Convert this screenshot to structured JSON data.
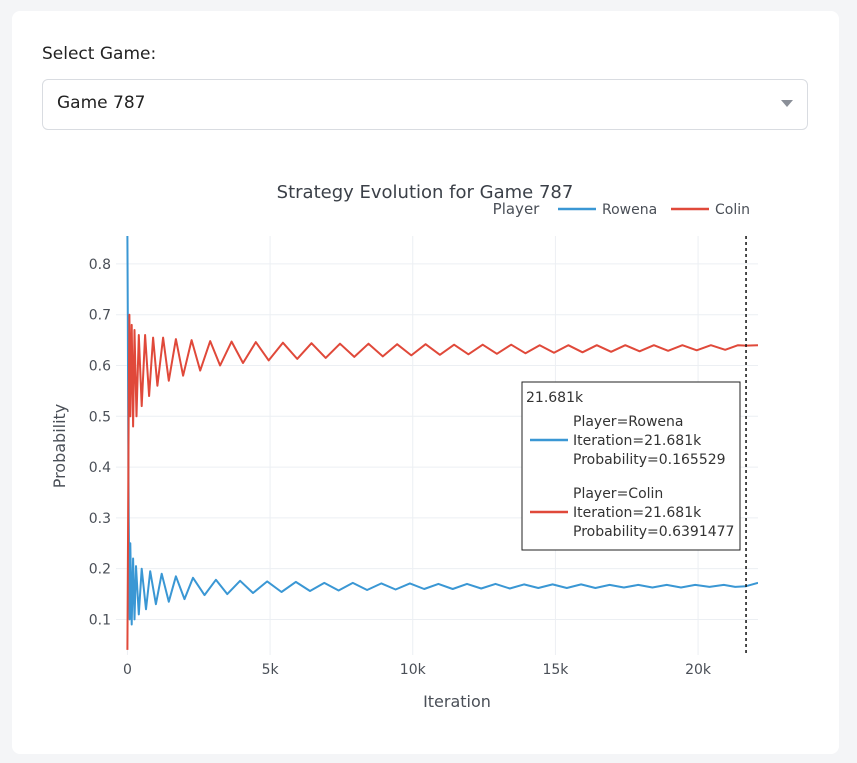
{
  "select": {
    "label": "Select Game:",
    "value": "Game 787"
  },
  "colors": {
    "rowena": "#3a97d4",
    "colin": "#e0493a",
    "grid": "#eceff3",
    "axis_text": "#4a4f57"
  },
  "chart_data": {
    "type": "line",
    "title": "Strategy Evolution for Game 787",
    "xlabel": "Iteration",
    "ylabel": "Probability",
    "legend_title": "Player",
    "legend_position": "top-right",
    "grid": true,
    "xlim": [
      -400,
      22100
    ],
    "ylim": [
      0.03,
      0.855
    ],
    "x_ticks": [
      0,
      5000,
      10000,
      15000,
      20000
    ],
    "x_tick_labels": [
      "0",
      "5k",
      "10k",
      "15k",
      "20k"
    ],
    "y_ticks": [
      0.1,
      0.2,
      0.3,
      0.4,
      0.5,
      0.6,
      0.7,
      0.8
    ],
    "y_tick_labels": [
      "0.1",
      "0.2",
      "0.3",
      "0.4",
      "0.5",
      "0.6",
      "0.7",
      "0.8"
    ],
    "series": [
      {
        "name": "Rowena",
        "color": "#3a97d4",
        "points": [
          [
            0,
            0.855
          ],
          [
            15,
            0.7
          ],
          [
            30,
            0.45
          ],
          [
            45,
            0.3
          ],
          [
            60,
            0.22
          ],
          [
            75,
            0.1
          ],
          [
            100,
            0.25
          ],
          [
            150,
            0.09
          ],
          [
            200,
            0.22
          ],
          [
            250,
            0.1
          ],
          [
            300,
            0.205
          ],
          [
            400,
            0.11
          ],
          [
            500,
            0.2
          ],
          [
            650,
            0.12
          ],
          [
            800,
            0.195
          ],
          [
            1000,
            0.13
          ],
          [
            1200,
            0.19
          ],
          [
            1450,
            0.135
          ],
          [
            1700,
            0.185
          ],
          [
            2000,
            0.14
          ],
          [
            2300,
            0.182
          ],
          [
            2700,
            0.148
          ],
          [
            3100,
            0.178
          ],
          [
            3500,
            0.15
          ],
          [
            3950,
            0.176
          ],
          [
            4400,
            0.152
          ],
          [
            4900,
            0.175
          ],
          [
            5400,
            0.154
          ],
          [
            5900,
            0.174
          ],
          [
            6400,
            0.156
          ],
          [
            6900,
            0.172
          ],
          [
            7400,
            0.157
          ],
          [
            7900,
            0.172
          ],
          [
            8400,
            0.158
          ],
          [
            8900,
            0.171
          ],
          [
            9400,
            0.159
          ],
          [
            9900,
            0.171
          ],
          [
            10400,
            0.16
          ],
          [
            10900,
            0.17
          ],
          [
            11400,
            0.16
          ],
          [
            11900,
            0.17
          ],
          [
            12400,
            0.161
          ],
          [
            12900,
            0.17
          ],
          [
            13400,
            0.161
          ],
          [
            13900,
            0.169
          ],
          [
            14400,
            0.162
          ],
          [
            14900,
            0.169
          ],
          [
            15400,
            0.162
          ],
          [
            15900,
            0.169
          ],
          [
            16400,
            0.162
          ],
          [
            16900,
            0.168
          ],
          [
            17400,
            0.163
          ],
          [
            17900,
            0.168
          ],
          [
            18400,
            0.163
          ],
          [
            18900,
            0.168
          ],
          [
            19400,
            0.163
          ],
          [
            19900,
            0.168
          ],
          [
            20400,
            0.164
          ],
          [
            20900,
            0.168
          ],
          [
            21300,
            0.164
          ],
          [
            21681,
            0.165529
          ],
          [
            22100,
            0.172
          ]
        ]
      },
      {
        "name": "Colin",
        "color": "#e0493a",
        "points": [
          [
            0,
            0.04
          ],
          [
            20,
            0.25
          ],
          [
            35,
            0.4
          ],
          [
            50,
            0.55
          ],
          [
            70,
            0.7
          ],
          [
            100,
            0.5
          ],
          [
            150,
            0.68
          ],
          [
            200,
            0.48
          ],
          [
            250,
            0.67
          ],
          [
            320,
            0.5
          ],
          [
            400,
            0.66
          ],
          [
            500,
            0.52
          ],
          [
            620,
            0.66
          ],
          [
            760,
            0.54
          ],
          [
            900,
            0.655
          ],
          [
            1050,
            0.56
          ],
          [
            1250,
            0.655
          ],
          [
            1450,
            0.57
          ],
          [
            1700,
            0.652
          ],
          [
            1950,
            0.58
          ],
          [
            2250,
            0.65
          ],
          [
            2550,
            0.59
          ],
          [
            2900,
            0.648
          ],
          [
            3250,
            0.6
          ],
          [
            3650,
            0.647
          ],
          [
            4050,
            0.605
          ],
          [
            4500,
            0.646
          ],
          [
            4950,
            0.61
          ],
          [
            5450,
            0.645
          ],
          [
            5950,
            0.613
          ],
          [
            6450,
            0.644
          ],
          [
            6950,
            0.615
          ],
          [
            7450,
            0.643
          ],
          [
            7950,
            0.617
          ],
          [
            8450,
            0.643
          ],
          [
            8950,
            0.618
          ],
          [
            9450,
            0.642
          ],
          [
            9950,
            0.62
          ],
          [
            10450,
            0.642
          ],
          [
            10950,
            0.621
          ],
          [
            11450,
            0.641
          ],
          [
            11950,
            0.622
          ],
          [
            12450,
            0.641
          ],
          [
            12950,
            0.623
          ],
          [
            13450,
            0.641
          ],
          [
            13950,
            0.624
          ],
          [
            14450,
            0.64
          ],
          [
            14950,
            0.625
          ],
          [
            15450,
            0.64
          ],
          [
            15950,
            0.626
          ],
          [
            16450,
            0.64
          ],
          [
            16950,
            0.627
          ],
          [
            17450,
            0.64
          ],
          [
            17950,
            0.628
          ],
          [
            18450,
            0.64
          ],
          [
            18950,
            0.629
          ],
          [
            19450,
            0.64
          ],
          [
            19950,
            0.63
          ],
          [
            20450,
            0.64
          ],
          [
            20950,
            0.631
          ],
          [
            21400,
            0.64
          ],
          [
            21681,
            0.6391477
          ],
          [
            22100,
            0.64
          ]
        ]
      }
    ],
    "hover": {
      "x": 21681,
      "header": "21.681k",
      "entries": [
        {
          "series": "Rowena",
          "lines": [
            "Player=Rowena",
            "Iteration=21.681k",
            "Probability=0.165529"
          ]
        },
        {
          "series": "Colin",
          "lines": [
            "Player=Colin",
            "Iteration=21.681k",
            "Probability=0.6391477"
          ]
        }
      ]
    }
  }
}
